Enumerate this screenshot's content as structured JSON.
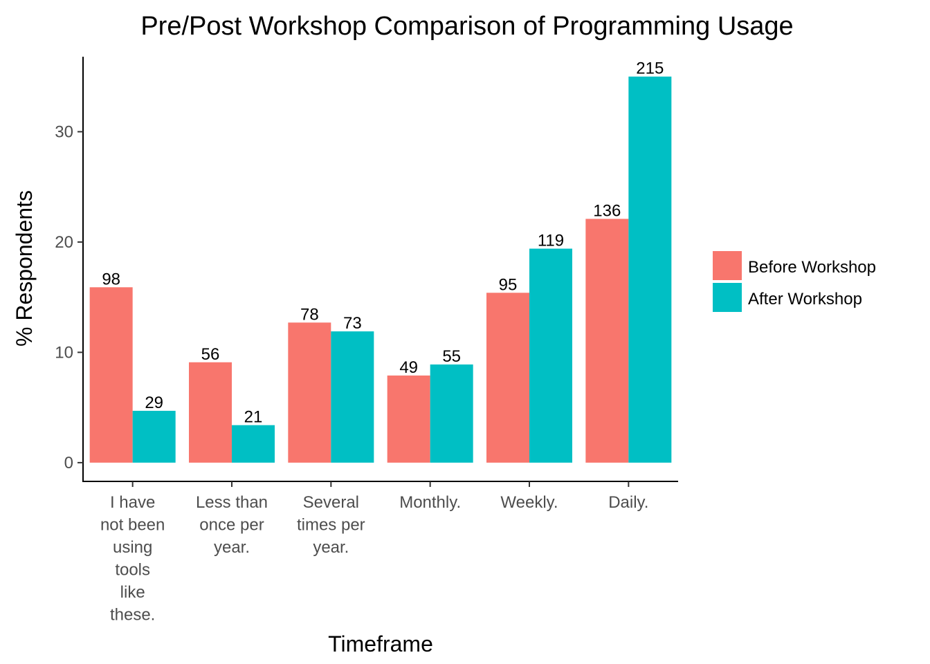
{
  "chart_data": {
    "type": "bar",
    "title": "Pre/Post Workshop Comparison of Programming Usage",
    "xlabel": "Timeframe",
    "ylabel": "% Respondents",
    "ylim": [
      -1.7,
      36.8
    ],
    "yticks": [
      0,
      10,
      20,
      30
    ],
    "grid": false,
    "legend_position": "right",
    "categories": [
      [
        "I have",
        "not been",
        "using",
        "tools",
        "like",
        "these."
      ],
      [
        "Less than",
        "once per",
        "year."
      ],
      [
        "Several",
        "times per",
        "year."
      ],
      [
        "Monthly."
      ],
      [
        "Weekly."
      ],
      [
        "Daily."
      ]
    ],
    "series": [
      {
        "name": "Before Workshop",
        "color": "#F8766D",
        "values": [
          15.9,
          9.1,
          12.7,
          7.9,
          15.4,
          22.1
        ],
        "labels": [
          "98",
          "56",
          "78",
          "49",
          "95",
          "136"
        ]
      },
      {
        "name": "After Workshop",
        "color": "#00BFC4",
        "values": [
          4.7,
          3.4,
          11.9,
          8.9,
          19.4,
          35.0
        ],
        "labels": [
          "29",
          "21",
          "73",
          "55",
          "119",
          "215"
        ]
      }
    ]
  }
}
